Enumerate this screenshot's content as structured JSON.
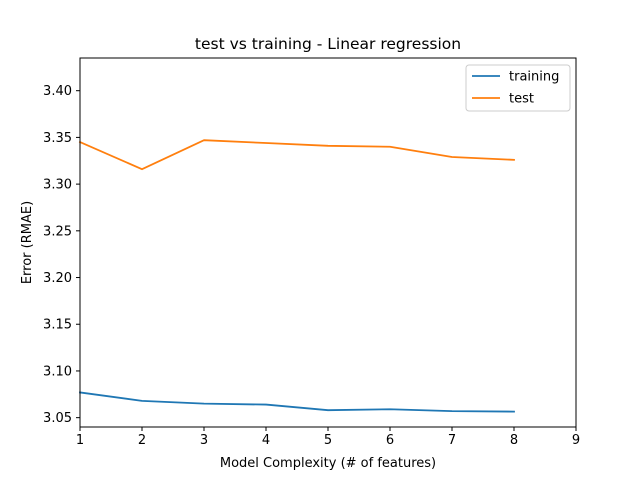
{
  "chart_data": {
    "type": "line",
    "title": "test vs training - Linear regression",
    "xlabel": "Model Complexity (# of features)",
    "ylabel": "Error (RMAE)",
    "xlim": [
      1,
      9
    ],
    "ylim": [
      3.04,
      3.435
    ],
    "xticks": [
      1,
      2,
      3,
      4,
      5,
      6,
      7,
      8,
      9
    ],
    "yticks": [
      3.05,
      3.1,
      3.15,
      3.2,
      3.25,
      3.3,
      3.35,
      3.4
    ],
    "ytick_labels": [
      "3.05",
      "3.10",
      "3.15",
      "3.20",
      "3.25",
      "3.30",
      "3.35",
      "3.40"
    ],
    "grid": false,
    "legend_position": "top-right",
    "x": [
      1,
      2,
      3,
      4,
      5,
      6,
      7,
      8
    ],
    "series": [
      {
        "name": "training",
        "color": "#1f77b4",
        "values": [
          3.077,
          3.068,
          3.065,
          3.064,
          3.058,
          3.059,
          3.057,
          3.0565
        ]
      },
      {
        "name": "test",
        "color": "#ff7f0e",
        "values": [
          3.345,
          3.316,
          3.347,
          3.344,
          3.341,
          3.34,
          3.329,
          3.326
        ]
      }
    ]
  }
}
